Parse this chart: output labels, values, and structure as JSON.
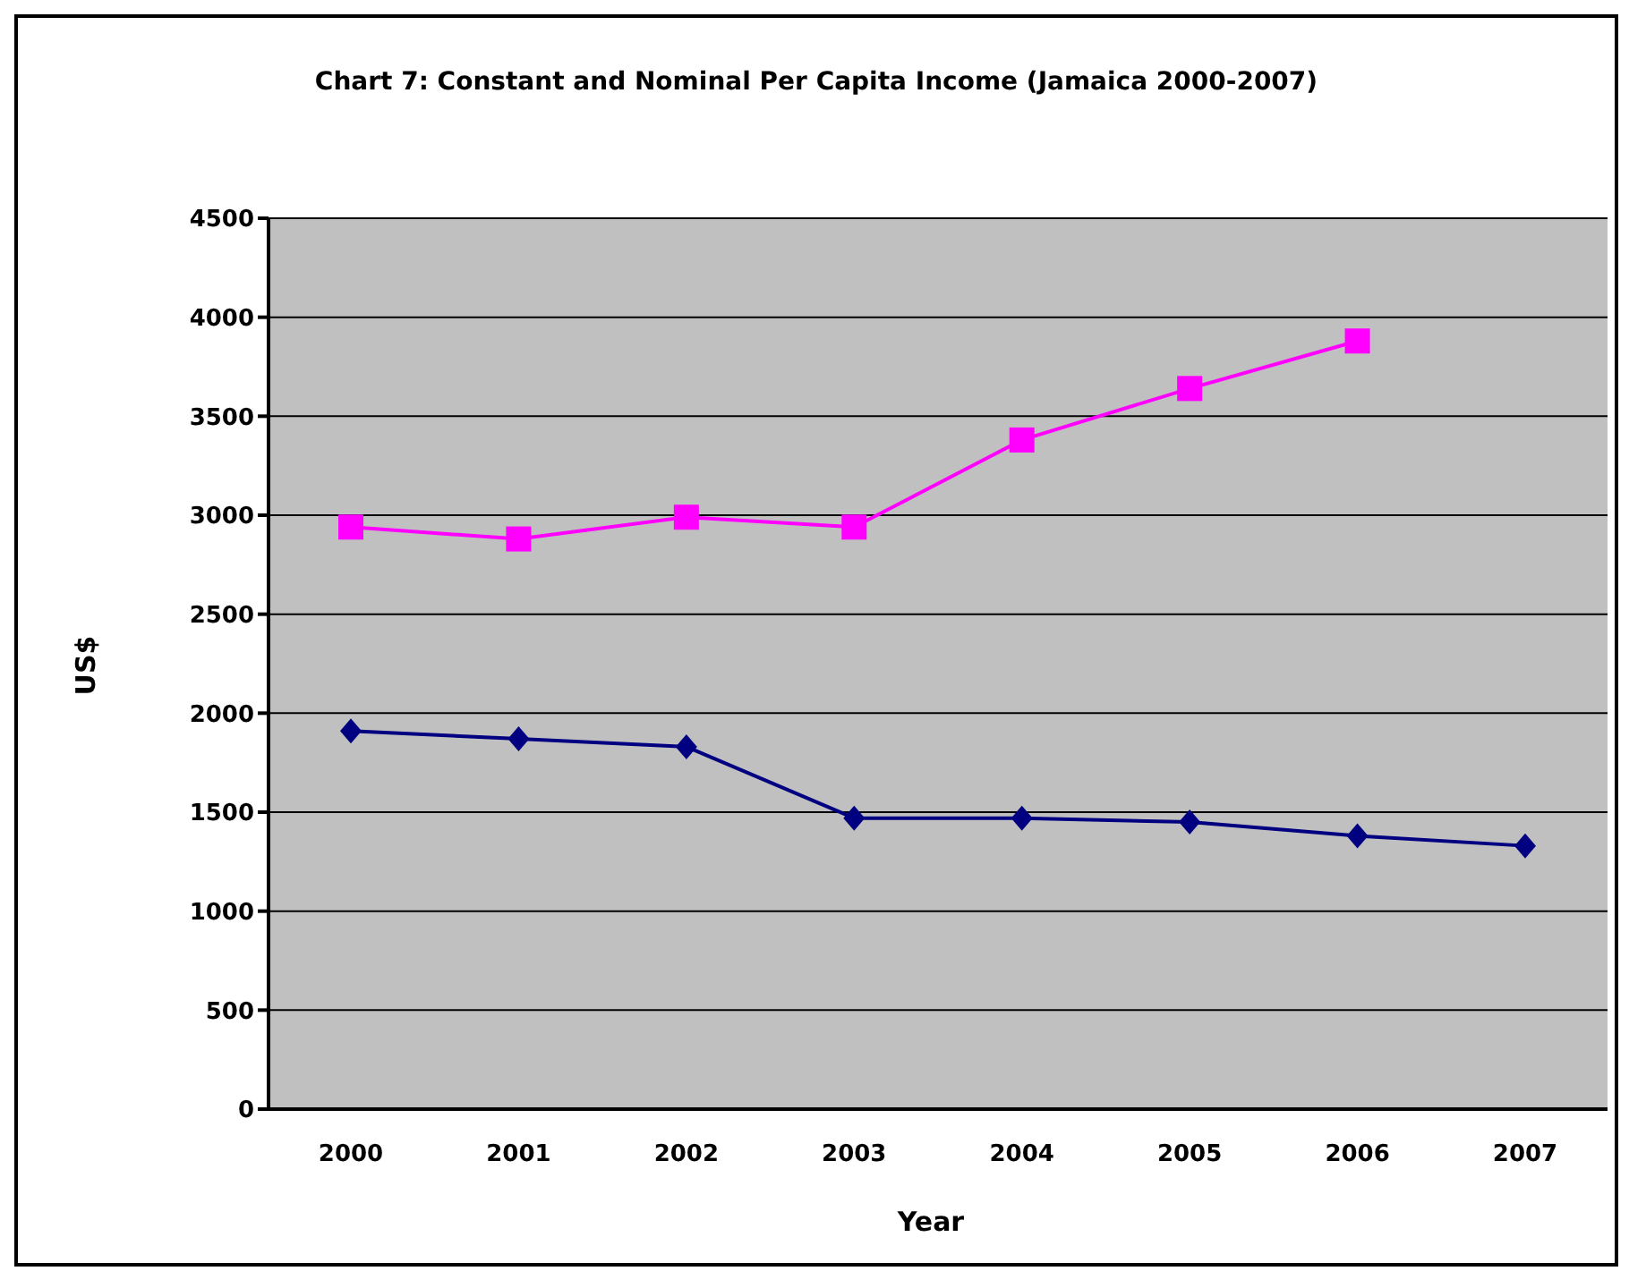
{
  "chart_data": {
    "type": "line",
    "title": "Chart 7: Constant and Nominal  Per Capita Income (Jamaica 2000-2007)",
    "xlabel": "Year",
    "ylabel": "US$",
    "categories": [
      "2000",
      "2001",
      "2002",
      "2003",
      "2004",
      "2005",
      "2006",
      "2007"
    ],
    "series": [
      {
        "color": "#ff00ff",
        "marker": "square",
        "values": [
          2940,
          2880,
          2990,
          2940,
          3380,
          3640,
          3880,
          null
        ]
      },
      {
        "color": "#000080",
        "marker": "diamond",
        "values": [
          1910,
          1870,
          1830,
          1470,
          1470,
          1450,
          1380,
          1330
        ]
      }
    ],
    "ylim": [
      0,
      4500
    ],
    "yticks": [
      0,
      500,
      1000,
      1500,
      2000,
      2500,
      3000,
      3500,
      4000,
      4500
    ],
    "grid": "y",
    "legend": false
  }
}
